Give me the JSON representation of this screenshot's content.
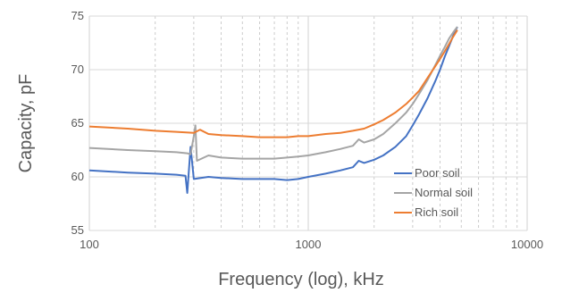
{
  "chart_data": {
    "type": "line",
    "title": "",
    "xlabel": "Frequency (log), kHz",
    "ylabel": "Capacity, pF",
    "x_scale": "log",
    "xlim": [
      100,
      10000
    ],
    "ylim": [
      55,
      75
    ],
    "x_ticks": [
      "100",
      "1000",
      "10000"
    ],
    "y_ticks": [
      "55",
      "60",
      "65",
      "70",
      "75"
    ],
    "grid": {
      "x_major": true,
      "x_minor_dashed": true,
      "y_major": true
    },
    "legend": {
      "placement": "bottom-right"
    },
    "series": [
      {
        "name": "Poor soil",
        "color": "#4472C4",
        "x": [
          100,
          150,
          200,
          250,
          275,
          280,
          290,
          300,
          350,
          400,
          500,
          600,
          700,
          800,
          900,
          1000,
          1200,
          1400,
          1600,
          1700,
          1800,
          2000,
          2200,
          2500,
          2800,
          3000,
          3200,
          3500,
          3800,
          4000,
          4200,
          4400,
          4600,
          4800
        ],
        "y": [
          60.6,
          60.4,
          60.3,
          60.2,
          60.1,
          58.5,
          62.8,
          59.8,
          60.0,
          59.9,
          59.8,
          59.8,
          59.8,
          59.7,
          59.8,
          60.0,
          60.3,
          60.6,
          60.9,
          61.5,
          61.3,
          61.6,
          62.0,
          62.8,
          63.8,
          64.8,
          65.8,
          67.3,
          68.9,
          70.0,
          71.2,
          72.2,
          73.2,
          74.0
        ]
      },
      {
        "name": "Normal soil",
        "color": "#A5A5A5",
        "x": [
          100,
          150,
          200,
          250,
          280,
          290,
          300,
          305,
          310,
          350,
          400,
          500,
          600,
          700,
          800,
          900,
          1000,
          1200,
          1400,
          1600,
          1700,
          1800,
          2000,
          2200,
          2500,
          2800,
          3000,
          3200,
          3500,
          3800,
          4000,
          4200,
          4400,
          4600,
          4800
        ],
        "y": [
          62.7,
          62.5,
          62.4,
          62.3,
          62.2,
          62.1,
          63.8,
          64.8,
          61.5,
          62.0,
          61.8,
          61.7,
          61.7,
          61.7,
          61.8,
          61.9,
          62.0,
          62.3,
          62.6,
          62.9,
          63.5,
          63.2,
          63.5,
          64.0,
          65.0,
          66.0,
          66.8,
          67.7,
          69.0,
          70.4,
          71.3,
          72.1,
          72.9,
          73.5,
          74.0
        ]
      },
      {
        "name": "Rich soil",
        "color": "#ED7D31",
        "x": [
          100,
          150,
          200,
          250,
          300,
          320,
          350,
          400,
          500,
          600,
          700,
          800,
          900,
          1000,
          1200,
          1400,
          1600,
          1800,
          2000,
          2200,
          2500,
          2800,
          3000,
          3200,
          3500,
          3800,
          4000,
          4200,
          4400,
          4600,
          4800
        ],
        "y": [
          64.7,
          64.5,
          64.3,
          64.2,
          64.1,
          64.4,
          64.0,
          63.9,
          63.8,
          63.7,
          63.7,
          63.7,
          63.8,
          63.8,
          64.0,
          64.1,
          64.3,
          64.5,
          64.9,
          65.3,
          66.0,
          66.8,
          67.4,
          68.0,
          69.2,
          70.3,
          71.0,
          71.7,
          72.4,
          73.1,
          73.7
        ]
      }
    ]
  }
}
